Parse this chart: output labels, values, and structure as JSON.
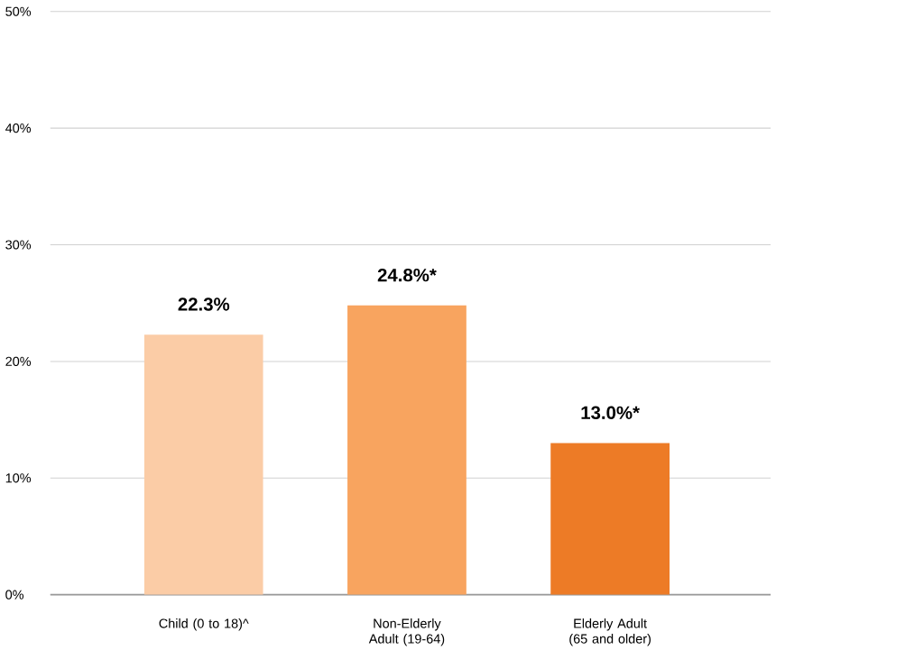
{
  "chart_data": {
    "type": "bar",
    "categories": [
      "Child (0 to 18)^",
      "Non-Elderly Adult (19-64)",
      "Elderly Adult (65 and older)"
    ],
    "values": [
      22.3,
      24.8,
      13.0
    ],
    "colors": [
      "#fbcca6",
      "#f8a45f",
      "#ed7b26"
    ],
    "value_labels": [
      "22.3%",
      "24.8%*",
      "13.0%*"
    ],
    "ylim": [
      0,
      50
    ],
    "yticks": [
      {
        "value": 0,
        "label": "0%"
      },
      {
        "value": 10,
        "label": "10%"
      },
      {
        "value": 20,
        "label": "20%"
      },
      {
        "value": 30,
        "label": "30%"
      },
      {
        "value": 40,
        "label": "40%"
      },
      {
        "value": 50,
        "label": "50%"
      }
    ],
    "grid": "y"
  }
}
